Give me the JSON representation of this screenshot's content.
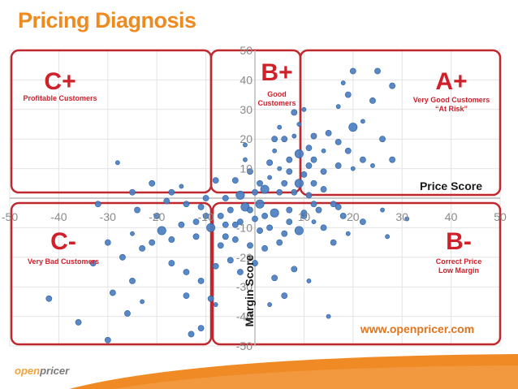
{
  "page": {
    "title": "Pricing Diagnosis",
    "url": "www.openpricer.com"
  },
  "logo": {
    "part1": "open",
    "part2": "pricer"
  },
  "colors": {
    "title": "#ef8a1f",
    "quadrant": "#c0282f",
    "quadrant_text": "#d0202a",
    "point": "#4a7fc1",
    "footer": "#f08a24"
  },
  "quadrants": [
    {
      "grade": "C+",
      "label_lines": [
        "Profitable Customers"
      ]
    },
    {
      "grade": "B+",
      "label_lines": [
        "Good",
        "Customers"
      ]
    },
    {
      "grade": "A+",
      "label_lines": [
        "Very Good Customers",
        "“At Risk”"
      ]
    },
    {
      "grade": "C-",
      "label_lines": [
        "Very Bad Customers"
      ]
    },
    {
      "grade": "B-",
      "label_lines": [
        "Correct Price",
        "Low Margin"
      ]
    }
  ],
  "chart_data": {
    "type": "scatter",
    "title": "Pricing Diagnosis",
    "xlabel": "Price Score",
    "ylabel": "Margin Score",
    "xlim": [
      -50,
      50
    ],
    "ylim": [
      -50,
      50
    ],
    "x_ticks": [
      "-50",
      "-40",
      "-30",
      "-20",
      "-10",
      "0",
      "10",
      "20",
      "30",
      "40",
      "50"
    ],
    "y_ticks": [
      "50",
      "40",
      "30",
      "20",
      "10",
      "0",
      "-10",
      "-20",
      "-30",
      "-40",
      "-50"
    ],
    "grid": true,
    "points": [
      [
        20,
        43,
        "m"
      ],
      [
        25,
        43,
        "m"
      ],
      [
        18,
        39,
        "s"
      ],
      [
        28,
        38,
        "m"
      ],
      [
        19,
        35,
        "m"
      ],
      [
        24,
        33,
        "m"
      ],
      [
        10,
        30,
        "s"
      ],
      [
        17,
        31,
        "s"
      ],
      [
        22,
        26,
        "s"
      ],
      [
        9,
        25,
        "s"
      ],
      [
        20,
        24,
        "l"
      ],
      [
        15,
        22,
        "m"
      ],
      [
        12,
        21,
        "m"
      ],
      [
        17,
        19,
        "m"
      ],
      [
        26,
        20,
        "m"
      ],
      [
        8,
        21,
        "s"
      ],
      [
        5,
        24,
        "s"
      ],
      [
        6,
        20,
        "m"
      ],
      [
        11,
        17,
        "m"
      ],
      [
        14,
        16,
        "s"
      ],
      [
        19,
        16,
        "m"
      ],
      [
        22,
        13,
        "m"
      ],
      [
        28,
        13,
        "m"
      ],
      [
        12,
        13,
        "m"
      ],
      [
        9,
        15,
        "l"
      ],
      [
        7,
        13,
        "m"
      ],
      [
        4,
        16,
        "s"
      ],
      [
        17,
        11,
        "m"
      ],
      [
        20,
        10,
        "s"
      ],
      [
        24,
        11,
        "s"
      ],
      [
        14,
        9,
        "m"
      ],
      [
        7,
        9,
        "m"
      ],
      [
        10,
        8,
        "m"
      ],
      [
        5,
        10,
        "s"
      ],
      [
        3,
        12,
        "m"
      ],
      [
        9,
        5,
        "l"
      ],
      [
        12,
        5,
        "m"
      ],
      [
        6,
        5,
        "m"
      ],
      [
        3,
        7,
        "s"
      ],
      [
        1,
        5,
        "m"
      ],
      [
        -1,
        9,
        "m"
      ],
      [
        -2,
        13,
        "s"
      ],
      [
        -2,
        18,
        "s"
      ],
      [
        2,
        3,
        "l"
      ],
      [
        -4,
        6,
        "m"
      ],
      [
        -8,
        6,
        "m"
      ],
      [
        0,
        2,
        "m"
      ],
      [
        5,
        2,
        "m"
      ],
      [
        8,
        2,
        "m"
      ],
      [
        11,
        1,
        "m"
      ],
      [
        14,
        3,
        "m"
      ],
      [
        -3,
        1,
        "l"
      ],
      [
        -6,
        0,
        "m"
      ],
      [
        -10,
        0,
        "m"
      ],
      [
        -15,
        4,
        "s"
      ],
      [
        -21,
        5,
        "m"
      ],
      [
        -25,
        2,
        "m"
      ],
      [
        -32,
        -2,
        "m"
      ],
      [
        -28,
        12,
        "s"
      ],
      [
        -17,
        2,
        "m"
      ],
      [
        1,
        -2,
        "l"
      ],
      [
        4,
        -5,
        "l"
      ],
      [
        7,
        -4,
        "m"
      ],
      [
        10,
        -6,
        "m"
      ],
      [
        12,
        -8,
        "s"
      ],
      [
        14,
        -10,
        "m"
      ],
      [
        17,
        -3,
        "m"
      ],
      [
        22,
        -8,
        "m"
      ],
      [
        26,
        -4,
        "s"
      ],
      [
        31,
        -7,
        "s"
      ],
      [
        27,
        -13,
        "s"
      ],
      [
        19,
        -12,
        "s"
      ],
      [
        16,
        -15,
        "m"
      ],
      [
        -2,
        -3,
        "l"
      ],
      [
        -5,
        -4,
        "m"
      ],
      [
        -7,
        -6,
        "m"
      ],
      [
        -10,
        -6,
        "m"
      ],
      [
        -12,
        -8,
        "m"
      ],
      [
        -9,
        -10,
        "l"
      ],
      [
        -6,
        -9,
        "m"
      ],
      [
        -3,
        -8,
        "m"
      ],
      [
        0,
        -7,
        "m"
      ],
      [
        3,
        -10,
        "m"
      ],
      [
        6,
        -12,
        "m"
      ],
      [
        9,
        -11,
        "l"
      ],
      [
        5,
        -15,
        "m"
      ],
      [
        2,
        -17,
        "m"
      ],
      [
        -1,
        -16,
        "m"
      ],
      [
        -4,
        -14,
        "m"
      ],
      [
        -7,
        -16,
        "m"
      ],
      [
        -12,
        -13,
        "m"
      ],
      [
        -15,
        -9,
        "m"
      ],
      [
        -17,
        -14,
        "m"
      ],
      [
        -19,
        -11,
        "l"
      ],
      [
        -21,
        -15,
        "m"
      ],
      [
        -23,
        -17,
        "m"
      ],
      [
        -25,
        -12,
        "s"
      ],
      [
        -27,
        -20,
        "m"
      ],
      [
        -30,
        -15,
        "m"
      ],
      [
        -33,
        -22,
        "m"
      ],
      [
        -25,
        -28,
        "m"
      ],
      [
        -17,
        -22,
        "m"
      ],
      [
        -14,
        -25,
        "m"
      ],
      [
        -11,
        -28,
        "m"
      ],
      [
        -8,
        -23,
        "m"
      ],
      [
        -5,
        -21,
        "m"
      ],
      [
        -3,
        -25,
        "m"
      ],
      [
        0,
        -22,
        "m"
      ],
      [
        4,
        -27,
        "m"
      ],
      [
        8,
        -24,
        "m"
      ],
      [
        11,
        -28,
        "s"
      ],
      [
        6,
        -33,
        "m"
      ],
      [
        -9,
        -34,
        "m"
      ],
      [
        -14,
        -33,
        "m"
      ],
      [
        -23,
        -35,
        "s"
      ],
      [
        -29,
        -32,
        "m"
      ],
      [
        -26,
        -39,
        "m"
      ],
      [
        -13,
        -46,
        "m"
      ],
      [
        -11,
        -44,
        "m"
      ],
      [
        -36,
        -42,
        "m"
      ],
      [
        -42,
        -34,
        "m"
      ],
      [
        -30,
        -48,
        "m"
      ],
      [
        -4,
        -9,
        "m"
      ],
      [
        1,
        -11,
        "m"
      ],
      [
        -20,
        -6,
        "m"
      ],
      [
        -24,
        -4,
        "m"
      ],
      [
        3,
        -36,
        "s"
      ],
      [
        15,
        -40,
        "s"
      ],
      [
        -8,
        -36,
        "s"
      ],
      [
        10,
        -5,
        "m"
      ],
      [
        12,
        -2,
        "m"
      ],
      [
        -1,
        -4,
        "m"
      ],
      [
        7,
        -8,
        "m"
      ],
      [
        -11,
        -3,
        "m"
      ],
      [
        -18,
        -1,
        "m"
      ],
      [
        -14,
        -2,
        "m"
      ],
      [
        2,
        -6,
        "m"
      ],
      [
        -6,
        -13,
        "m"
      ],
      [
        13,
        -4,
        "m"
      ],
      [
        18,
        -6,
        "m"
      ],
      [
        16,
        -2,
        "m"
      ],
      [
        11,
        11,
        "m"
      ],
      [
        4,
        20,
        "m"
      ],
      [
        8,
        29,
        "m"
      ]
    ]
  }
}
